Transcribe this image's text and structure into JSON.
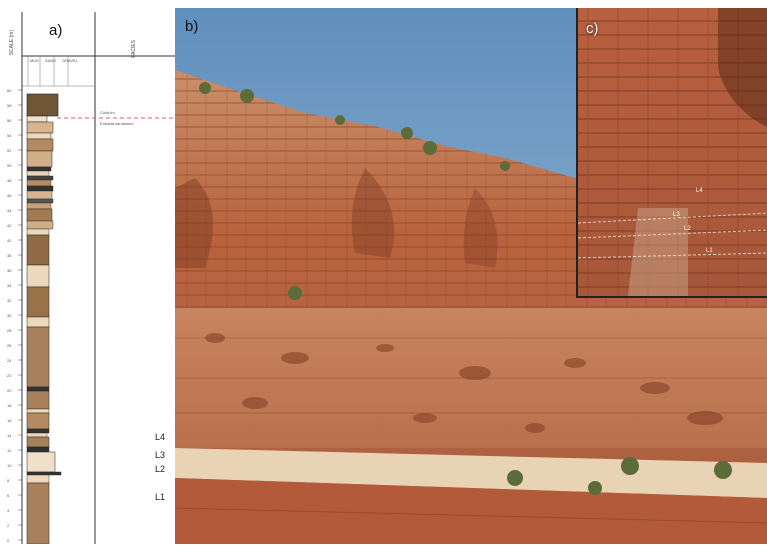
{
  "panels": {
    "a": {
      "label": "a)",
      "scale_header": "SCALE (m)",
      "grain_sizes": [
        "MUD",
        "SAND",
        "GRAVEL"
      ],
      "facies_header": "FACIES",
      "formation_labels": [
        "Cuila fm",
        "Entrada sandstone"
      ],
      "scale_ticks": [
        "60",
        "58",
        "56",
        "54",
        "52",
        "50",
        "48",
        "46",
        "44",
        "42",
        "40",
        "38",
        "36",
        "34",
        "32",
        "30",
        "28",
        "26",
        "24",
        "22",
        "20",
        "18",
        "16",
        "14",
        "12",
        "10",
        "8",
        "6",
        "4",
        "2",
        "0"
      ]
    },
    "b": {
      "label": "b)",
      "units": [
        "L4",
        "L3",
        "L2",
        "L1"
      ]
    },
    "c": {
      "label": "c)",
      "units": [
        "L4",
        "L3",
        "L2",
        "L1"
      ]
    }
  },
  "colors": {
    "boundary_line": "#e06060",
    "sky": "#7aa3c8",
    "rock": "#b5613f",
    "sandstone_log": "#a9805c"
  }
}
